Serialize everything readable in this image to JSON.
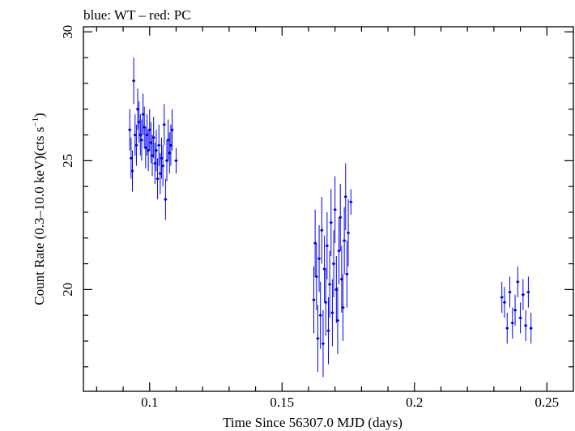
{
  "chart_data": {
    "type": "scatter",
    "title": "blue: WT – red: PC",
    "xlabel": "Time Since 56307.0 MJD (days)",
    "ylabel_main": "Count Rate (0.3–10.0 keV)(cts s",
    "ylabel_sup": "−1",
    "ylabel_end": ")",
    "xlim": [
      0.075,
      0.26
    ],
    "ylim": [
      16.05,
      30.2
    ],
    "x_ticks": [
      {
        "value": 0.1,
        "label": "0.1"
      },
      {
        "value": 0.15,
        "label": "0.15"
      },
      {
        "value": 0.2,
        "label": "0.2"
      },
      {
        "value": 0.25,
        "label": "0.25"
      }
    ],
    "y_ticks": [
      {
        "value": 20,
        "label": "20"
      },
      {
        "value": 25,
        "label": "25"
      },
      {
        "value": 30,
        "label": "30"
      }
    ],
    "grid": false,
    "series": [
      {
        "color": "#0000ee",
        "points": [
          {
            "x": 0.0925,
            "y": 26.2,
            "err": 0.8
          },
          {
            "x": 0.093,
            "y": 25.1,
            "err": 0.8
          },
          {
            "x": 0.0935,
            "y": 24.6,
            "err": 0.8
          },
          {
            "x": 0.094,
            "y": 28.1,
            "err": 0.9
          },
          {
            "x": 0.0945,
            "y": 26.0,
            "err": 0.8
          },
          {
            "x": 0.095,
            "y": 25.6,
            "err": 0.8
          },
          {
            "x": 0.0955,
            "y": 27.0,
            "err": 0.8
          },
          {
            "x": 0.096,
            "y": 26.5,
            "err": 0.8
          },
          {
            "x": 0.0965,
            "y": 26.0,
            "err": 0.8
          },
          {
            "x": 0.097,
            "y": 25.8,
            "err": 0.8
          },
          {
            "x": 0.0975,
            "y": 26.8,
            "err": 0.8
          },
          {
            "x": 0.098,
            "y": 26.3,
            "err": 0.8
          },
          {
            "x": 0.0985,
            "y": 25.5,
            "err": 0.8
          },
          {
            "x": 0.099,
            "y": 26.0,
            "err": 0.8
          },
          {
            "x": 0.0995,
            "y": 25.4,
            "err": 0.8
          },
          {
            "x": 0.1,
            "y": 26.2,
            "err": 0.8
          },
          {
            "x": 0.1005,
            "y": 25.7,
            "err": 0.8
          },
          {
            "x": 0.101,
            "y": 25.2,
            "err": 0.8
          },
          {
            "x": 0.1015,
            "y": 25.9,
            "err": 0.8
          },
          {
            "x": 0.102,
            "y": 24.9,
            "err": 0.8
          },
          {
            "x": 0.1025,
            "y": 25.4,
            "err": 0.8
          },
          {
            "x": 0.103,
            "y": 24.3,
            "err": 0.8
          },
          {
            "x": 0.1035,
            "y": 25.6,
            "err": 0.8
          },
          {
            "x": 0.104,
            "y": 24.5,
            "err": 0.8
          },
          {
            "x": 0.1045,
            "y": 25.1,
            "err": 0.8
          },
          {
            "x": 0.105,
            "y": 24.8,
            "err": 0.8
          },
          {
            "x": 0.1055,
            "y": 26.4,
            "err": 0.8
          },
          {
            "x": 0.106,
            "y": 23.5,
            "err": 0.8
          },
          {
            "x": 0.1065,
            "y": 25.0,
            "err": 0.8
          },
          {
            "x": 0.107,
            "y": 25.8,
            "err": 0.8
          },
          {
            "x": 0.1075,
            "y": 25.3,
            "err": 0.8
          },
          {
            "x": 0.108,
            "y": 25.6,
            "err": 0.8
          },
          {
            "x": 0.1085,
            "y": 26.2,
            "err": 0.8
          },
          {
            "x": 0.11,
            "y": 25.0,
            "err": 0.5
          },
          {
            "x": 0.162,
            "y": 19.6,
            "err": 1.3
          },
          {
            "x": 0.1625,
            "y": 21.8,
            "err": 1.3
          },
          {
            "x": 0.163,
            "y": 20.5,
            "err": 1.3
          },
          {
            "x": 0.1635,
            "y": 18.1,
            "err": 1.3
          },
          {
            "x": 0.164,
            "y": 21.2,
            "err": 1.3
          },
          {
            "x": 0.1645,
            "y": 19.0,
            "err": 1.3
          },
          {
            "x": 0.165,
            "y": 22.3,
            "err": 1.3
          },
          {
            "x": 0.1655,
            "y": 17.9,
            "err": 1.3
          },
          {
            "x": 0.166,
            "y": 20.8,
            "err": 1.3
          },
          {
            "x": 0.1665,
            "y": 19.5,
            "err": 1.3
          },
          {
            "x": 0.167,
            "y": 21.7,
            "err": 1.3
          },
          {
            "x": 0.1675,
            "y": 18.4,
            "err": 1.3
          },
          {
            "x": 0.168,
            "y": 20.2,
            "err": 1.3
          },
          {
            "x": 0.1685,
            "y": 22.6,
            "err": 1.3
          },
          {
            "x": 0.169,
            "y": 19.1,
            "err": 1.3
          },
          {
            "x": 0.1695,
            "y": 21.0,
            "err": 1.3
          },
          {
            "x": 0.17,
            "y": 23.1,
            "err": 1.3
          },
          {
            "x": 0.1705,
            "y": 20.0,
            "err": 1.3
          },
          {
            "x": 0.171,
            "y": 18.8,
            "err": 1.3
          },
          {
            "x": 0.1715,
            "y": 21.5,
            "err": 1.3
          },
          {
            "x": 0.172,
            "y": 22.8,
            "err": 1.3
          },
          {
            "x": 0.1725,
            "y": 20.4,
            "err": 1.3
          },
          {
            "x": 0.173,
            "y": 19.3,
            "err": 1.3
          },
          {
            "x": 0.1735,
            "y": 21.9,
            "err": 1.3
          },
          {
            "x": 0.174,
            "y": 23.6,
            "err": 1.3
          },
          {
            "x": 0.1745,
            "y": 20.6,
            "err": 1.3
          },
          {
            "x": 0.175,
            "y": 22.2,
            "err": 1.3
          },
          {
            "x": 0.176,
            "y": 23.4,
            "err": 0.5
          },
          {
            "x": 0.233,
            "y": 19.7,
            "err": 0.6
          },
          {
            "x": 0.234,
            "y": 19.5,
            "err": 0.6
          },
          {
            "x": 0.235,
            "y": 18.5,
            "err": 0.6
          },
          {
            "x": 0.236,
            "y": 19.9,
            "err": 0.6
          },
          {
            "x": 0.237,
            "y": 18.7,
            "err": 0.6
          },
          {
            "x": 0.238,
            "y": 19.2,
            "err": 0.6
          },
          {
            "x": 0.239,
            "y": 20.3,
            "err": 0.6
          },
          {
            "x": 0.24,
            "y": 18.9,
            "err": 0.6
          },
          {
            "x": 0.241,
            "y": 19.8,
            "err": 0.6
          },
          {
            "x": 0.242,
            "y": 18.6,
            "err": 0.6
          },
          {
            "x": 0.243,
            "y": 19.9,
            "err": 0.6
          },
          {
            "x": 0.244,
            "y": 18.5,
            "err": 0.6
          }
        ]
      }
    ]
  }
}
